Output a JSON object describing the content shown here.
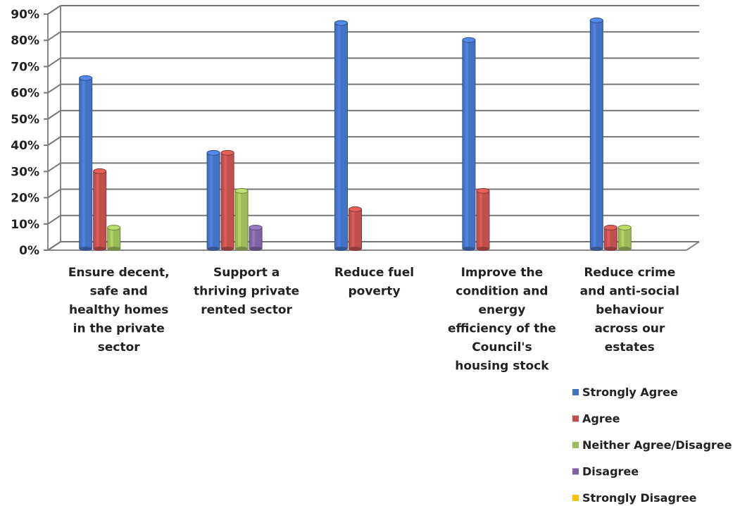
{
  "chart_data": {
    "type": "bar",
    "categories": [
      [
        "Ensure decent,",
        "safe and",
        "healthy homes",
        "in the private",
        "sector"
      ],
      [
        "Support a",
        "thriving private",
        "rented sector"
      ],
      [
        "Reduce fuel",
        "poverty"
      ],
      [
        "Improve the",
        "condition and",
        "energy",
        "efficiency of the",
        "Council's",
        "housing stock"
      ],
      [
        "Reduce crime",
        "and anti-social",
        "behaviour",
        "across our",
        "estates"
      ]
    ],
    "series": [
      {
        "name": "Strongly Agree",
        "color": "#4472C4",
        "values": [
          64,
          35.5,
          85,
          78.5,
          86
        ]
      },
      {
        "name": "Agree",
        "color": "#C0504D",
        "values": [
          28.5,
          35.5,
          14,
          21,
          7
        ]
      },
      {
        "name": "Neither Agree/Disagree",
        "color": "#9BBB59",
        "values": [
          7,
          21,
          0,
          0,
          7
        ]
      },
      {
        "name": "Disagree",
        "color": "#8064A2",
        "values": [
          0,
          7,
          0,
          0,
          0
        ]
      },
      {
        "name": "Strongly Disagree",
        "color": "#FFC000",
        "values": [
          0,
          0,
          0,
          0,
          0
        ]
      }
    ],
    "ylim": [
      0,
      90
    ],
    "yticks": [
      "0%",
      "10%",
      "20%",
      "30%",
      "40%",
      "50%",
      "60%",
      "70%",
      "80%",
      "90%"
    ],
    "legend_position": "bottom-right",
    "grid": true
  }
}
